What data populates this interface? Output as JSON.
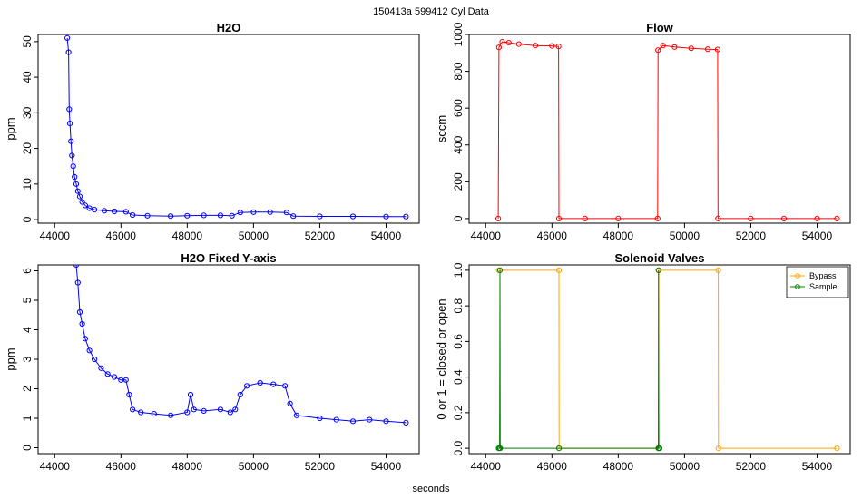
{
  "figure": {
    "suptitle": "150413a   599412   Cyl Data",
    "xlabel": "seconds"
  },
  "chart_data": [
    {
      "id": "h2o",
      "type": "scatter",
      "title": "H2O",
      "xlabel": "",
      "ylabel": "ppm",
      "xlim": [
        43500,
        55000
      ],
      "ylim": [
        -1,
        52
      ],
      "xticks": [
        44000,
        46000,
        48000,
        50000,
        52000,
        54000
      ],
      "yticks": [
        0,
        10,
        20,
        30,
        40,
        50
      ],
      "series": [
        {
          "color": "#0000ff",
          "connect": true,
          "points": [
            [
              44380,
              51
            ],
            [
              44420,
              47
            ],
            [
              44440,
              31
            ],
            [
              44460,
              27
            ],
            [
              44490,
              22
            ],
            [
              44520,
              18
            ],
            [
              44560,
              15
            ],
            [
              44600,
              12
            ],
            [
              44650,
              10
            ],
            [
              44700,
              8
            ],
            [
              44760,
              6.5
            ],
            [
              44830,
              5
            ],
            [
              44920,
              4
            ],
            [
              45050,
              3.2
            ],
            [
              45200,
              2.8
            ],
            [
              45500,
              2.5
            ],
            [
              45800,
              2.3
            ],
            [
              46150,
              2.2
            ],
            [
              46350,
              1.3
            ],
            [
              46800,
              1.1
            ],
            [
              47500,
              1.0
            ],
            [
              48000,
              1.1
            ],
            [
              48500,
              1.2
            ],
            [
              49000,
              1.2
            ],
            [
              49350,
              1.1
            ],
            [
              49600,
              2.0
            ],
            [
              50000,
              2.1
            ],
            [
              50500,
              2.1
            ],
            [
              51000,
              2.0
            ],
            [
              51200,
              1.0
            ],
            [
              52000,
              0.9
            ],
            [
              53000,
              0.9
            ],
            [
              54000,
              0.85
            ],
            [
              54600,
              0.85
            ]
          ]
        }
      ]
    },
    {
      "id": "flow",
      "type": "scatter",
      "title": "Flow",
      "xlabel": "",
      "ylabel": "sccm",
      "xlim": [
        43500,
        55000
      ],
      "ylim": [
        -25,
        1000
      ],
      "xticks": [
        44000,
        46000,
        48000,
        50000,
        52000,
        54000
      ],
      "yticks": [
        0,
        200,
        400,
        600,
        800,
        1000
      ],
      "series": [
        {
          "color": "#ff0000",
          "connect": true,
          "points": [
            [
              44380,
              0
            ],
            [
              44400,
              930
            ],
            [
              44500,
              960
            ],
            [
              44700,
              955
            ],
            [
              45000,
              948
            ],
            [
              45500,
              940
            ],
            [
              46000,
              938
            ],
            [
              46200,
              935
            ],
            [
              46210,
              0
            ],
            [
              47000,
              0
            ],
            [
              48000,
              0
            ],
            [
              49190,
              0
            ],
            [
              49200,
              915
            ],
            [
              49350,
              940
            ],
            [
              49700,
              932
            ],
            [
              50200,
              925
            ],
            [
              50700,
              920
            ],
            [
              51000,
              918
            ],
            [
              51010,
              0
            ],
            [
              52000,
              0
            ],
            [
              53000,
              0
            ],
            [
              54000,
              0
            ],
            [
              54600,
              0
            ]
          ]
        }
      ]
    },
    {
      "id": "h2o-fixed",
      "type": "scatter",
      "title": "H2O Fixed Y-axis",
      "xlabel": "",
      "ylabel": "ppm",
      "xlim": [
        43500,
        55000
      ],
      "ylim": [
        -0.2,
        6.2
      ],
      "xticks": [
        44000,
        46000,
        48000,
        50000,
        52000,
        54000
      ],
      "yticks": [
        0,
        1,
        2,
        3,
        4,
        5,
        6
      ],
      "series": [
        {
          "color": "#0000ff",
          "connect": true,
          "points": [
            [
              44650,
              6.2
            ],
            [
              44700,
              5.6
            ],
            [
              44760,
              4.6
            ],
            [
              44830,
              4.2
            ],
            [
              44920,
              3.7
            ],
            [
              45050,
              3.3
            ],
            [
              45200,
              3.0
            ],
            [
              45400,
              2.7
            ],
            [
              45600,
              2.5
            ],
            [
              45800,
              2.4
            ],
            [
              46000,
              2.3
            ],
            [
              46150,
              2.3
            ],
            [
              46250,
              1.8
            ],
            [
              46350,
              1.3
            ],
            [
              46600,
              1.2
            ],
            [
              47000,
              1.15
            ],
            [
              47500,
              1.1
            ],
            [
              48000,
              1.2
            ],
            [
              48100,
              1.8
            ],
            [
              48200,
              1.3
            ],
            [
              48500,
              1.25
            ],
            [
              49000,
              1.3
            ],
            [
              49300,
              1.2
            ],
            [
              49450,
              1.3
            ],
            [
              49600,
              1.8
            ],
            [
              49800,
              2.1
            ],
            [
              50200,
              2.2
            ],
            [
              50600,
              2.15
            ],
            [
              50950,
              2.1
            ],
            [
              51100,
              1.5
            ],
            [
              51300,
              1.1
            ],
            [
              52000,
              1.0
            ],
            [
              52500,
              0.95
            ],
            [
              53000,
              0.9
            ],
            [
              53500,
              0.95
            ],
            [
              54000,
              0.9
            ],
            [
              54600,
              0.85
            ]
          ]
        }
      ]
    },
    {
      "id": "solenoid",
      "type": "scatter",
      "title": "Solenoid Valves",
      "xlabel": "",
      "ylabel": "0 or 1 = closed or open",
      "xlim": [
        43500,
        55000
      ],
      "ylim": [
        -0.03,
        1.03
      ],
      "xticks": [
        44000,
        46000,
        48000,
        50000,
        52000,
        54000
      ],
      "yticks": [
        0.0,
        0.2,
        0.4,
        0.6,
        0.8,
        1.0
      ],
      "legend_position": "top-right",
      "series": [
        {
          "name": "Bypass",
          "color": "#ffa500",
          "connect": true,
          "points": [
            [
              44390,
              1
            ],
            [
              46210,
              1
            ],
            [
              46215,
              0
            ],
            [
              49220,
              0
            ],
            [
              49225,
              1
            ],
            [
              51020,
              1
            ],
            [
              51025,
              0
            ],
            [
              54600,
              0
            ]
          ]
        },
        {
          "name": "Sample",
          "color": "#008000",
          "connect": true,
          "points": [
            [
              44390,
              0
            ],
            [
              44420,
              0
            ],
            [
              44430,
              1
            ],
            [
              44440,
              0
            ],
            [
              46210,
              0
            ],
            [
              49210,
              0
            ],
            [
              49215,
              1
            ],
            [
              49225,
              0
            ],
            [
              49250,
              0
            ]
          ]
        }
      ]
    }
  ]
}
